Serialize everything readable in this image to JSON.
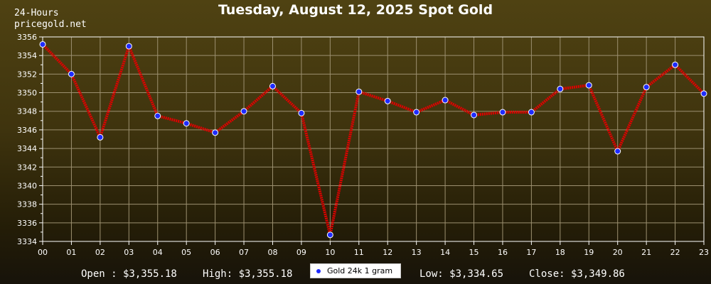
{
  "header": {
    "corner_line1": "24-Hours",
    "corner_line2": "pricegold.net",
    "title": "Tuesday, August 12, 2025 Spot Gold"
  },
  "stats": {
    "open": "Open : $3,355.18",
    "high": "High: $3,355.18",
    "low": "Low: $3,334.65",
    "close": "Close: $3,349.86"
  },
  "legend": {
    "label": "Gold 24k 1 gram",
    "icon": "blue-dot-icon"
  },
  "colors": {
    "line": "#e00000",
    "marker_fill": "#1e2bff",
    "grid": "#9c9070",
    "plot_border": "#ffffff",
    "text": "#ffffff"
  },
  "chart_data": {
    "type": "line",
    "title": "Tuesday, August 12, 2025 Spot Gold",
    "xlabel": "",
    "ylabel": "",
    "x": [
      "00",
      "01",
      "02",
      "03",
      "04",
      "05",
      "06",
      "07",
      "08",
      "09",
      "10",
      "11",
      "12",
      "13",
      "14",
      "15",
      "16",
      "17",
      "18",
      "19",
      "20",
      "21",
      "22",
      "23"
    ],
    "series": [
      {
        "name": "Gold 24k 1 gram",
        "values": [
          3355.2,
          3352.0,
          3345.2,
          3355.0,
          3347.5,
          3346.7,
          3345.7,
          3348.0,
          3350.7,
          3347.8,
          3334.7,
          3350.1,
          3349.1,
          3347.9,
          3349.2,
          3347.6,
          3347.9,
          3347.9,
          3350.4,
          3350.8,
          3343.7,
          3350.6,
          3353.0,
          3349.9
        ]
      }
    ],
    "ylim": [
      3334,
      3356
    ],
    "yticks": [
      3334,
      3336,
      3338,
      3340,
      3342,
      3344,
      3346,
      3348,
      3350,
      3352,
      3354,
      3356
    ],
    "grid": true,
    "legend_position": "bottom-center"
  }
}
